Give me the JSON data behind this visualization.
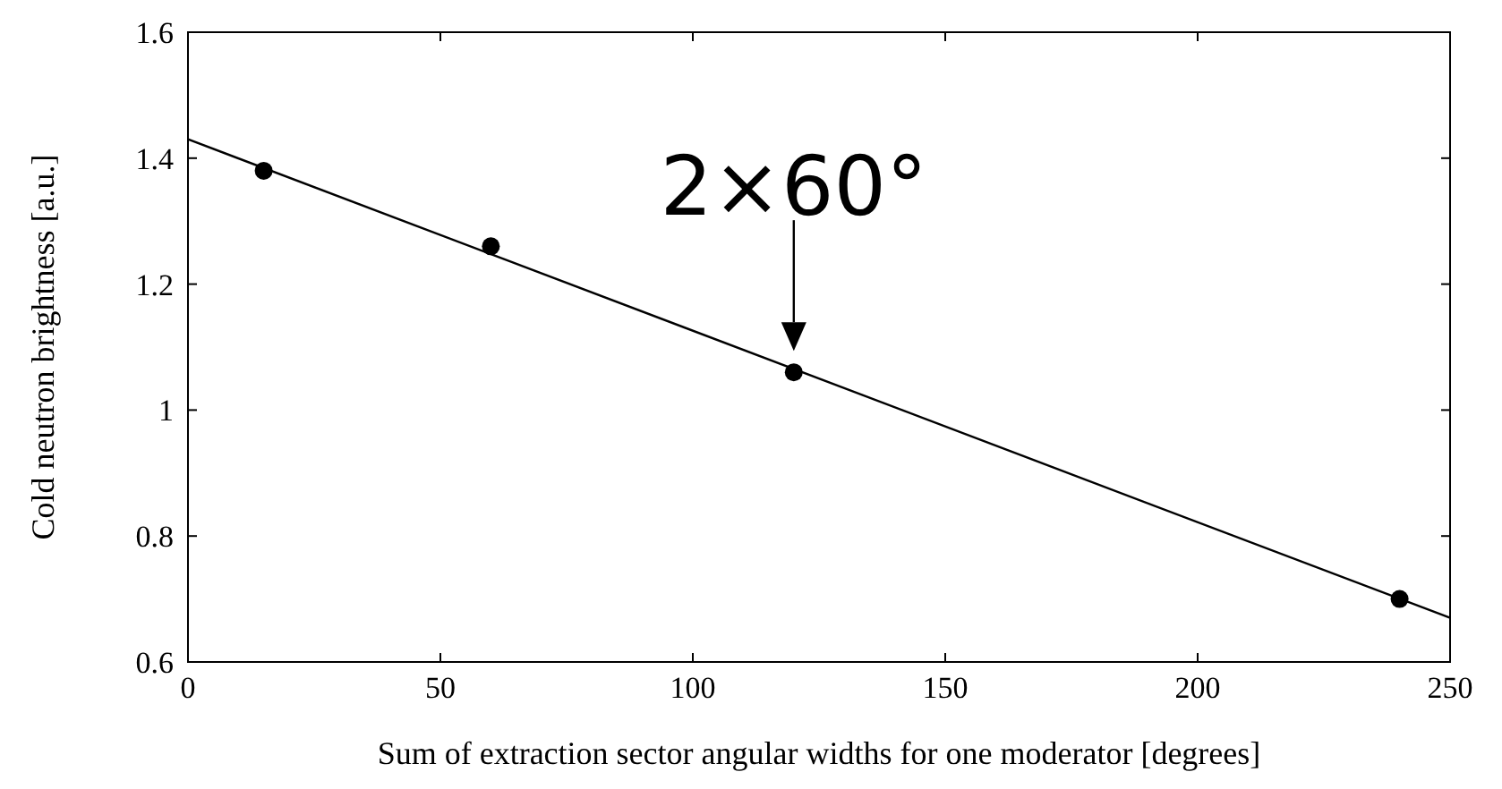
{
  "chart_data": {
    "type": "scatter",
    "xlabel": "Sum of extraction sector angular widths for one moderator [degrees]",
    "ylabel": "Cold neutron brightness [a.u.]",
    "x": [
      15,
      60,
      120,
      240
    ],
    "series": [
      {
        "color": "#000000",
        "values": [
          1.38,
          1.26,
          1.06,
          0.7
        ],
        "marker": "circle"
      },
      {
        "type": "line",
        "color": "#000000",
        "x": [
          0,
          250
        ],
        "values": [
          1.43,
          0.67
        ],
        "marker": "none"
      }
    ],
    "xlim": [
      0,
      250
    ],
    "xticks": [
      0,
      50,
      100,
      150,
      200,
      250
    ],
    "ylim": [
      0.6,
      1.6
    ],
    "yticks": [
      0.6,
      0.8,
      1,
      1.2,
      1.4,
      1.6
    ],
    "annotations": [
      {
        "text": "2×60°",
        "x": 120,
        "y": 1.06
      }
    ],
    "grid": false
  }
}
